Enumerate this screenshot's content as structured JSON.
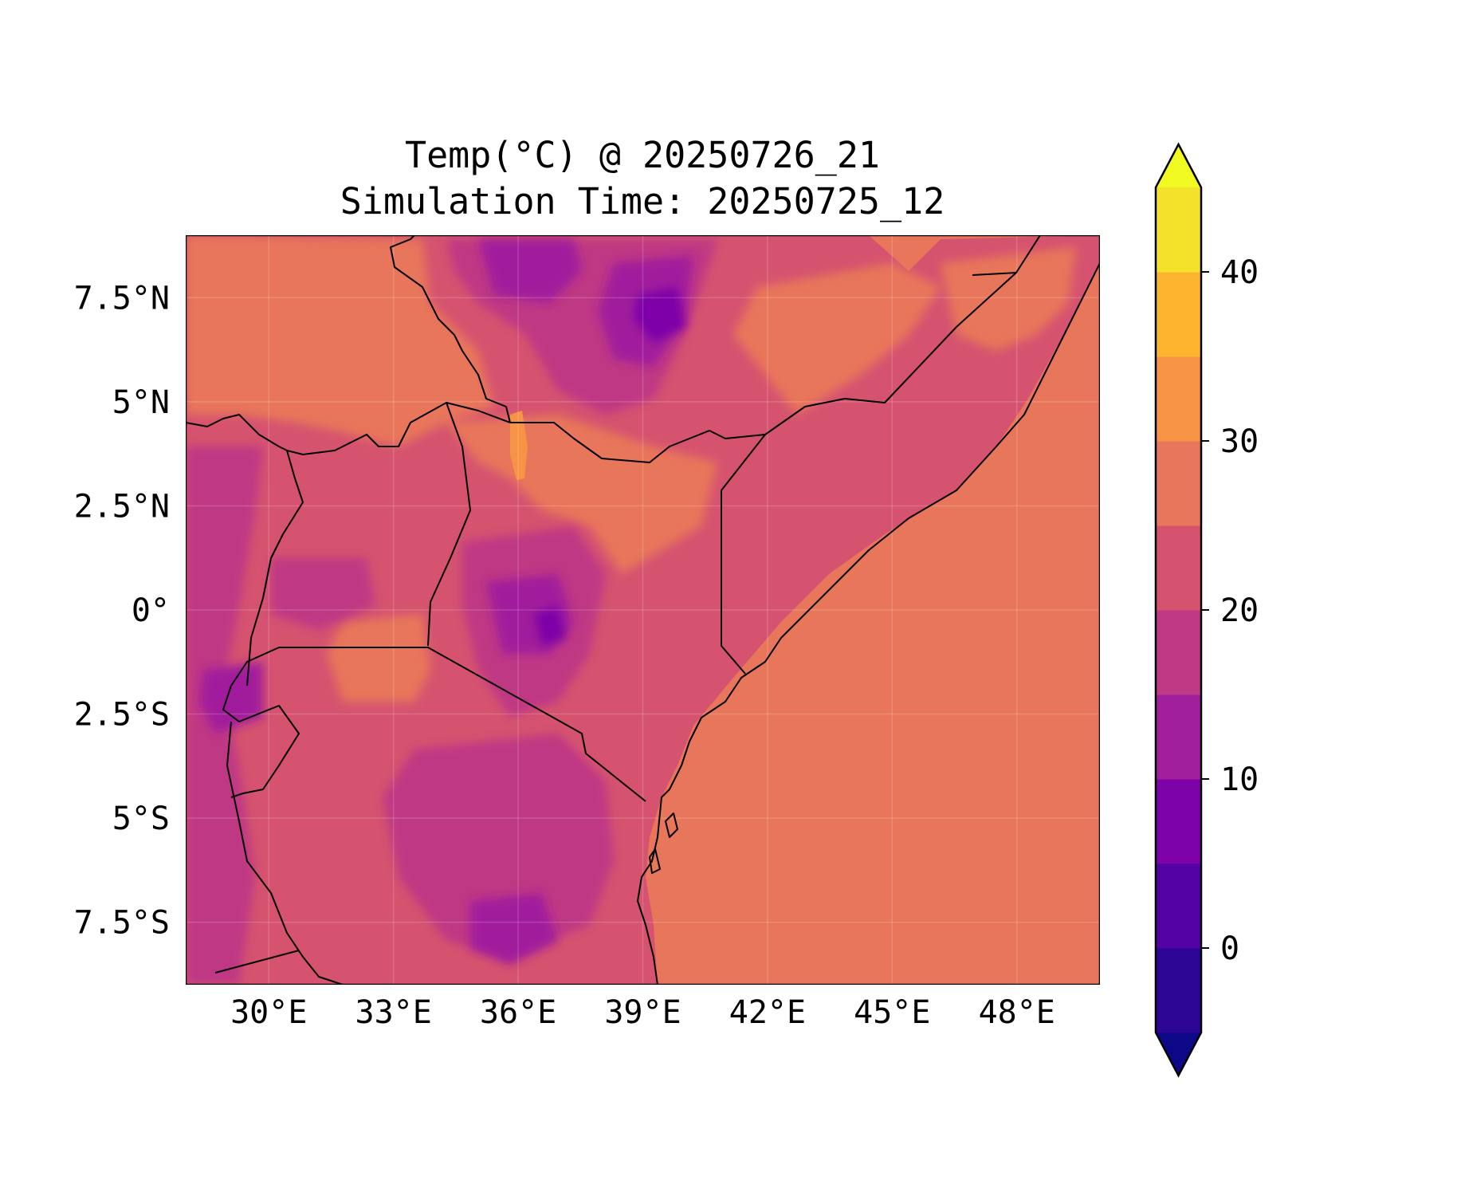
{
  "title": {
    "line1": "Temp(°C) @ 20250726_21",
    "line2": "Simulation Time: 20250725_12"
  },
  "map": {
    "lon_range": [
      28,
      50
    ],
    "lat_range": [
      -9,
      9
    ],
    "x_ticks": [
      {
        "value": 30,
        "label": "30°E"
      },
      {
        "value": 33,
        "label": "33°E"
      },
      {
        "value": 36,
        "label": "36°E"
      },
      {
        "value": 39,
        "label": "39°E"
      },
      {
        "value": 42,
        "label": "42°E"
      },
      {
        "value": 45,
        "label": "45°E"
      },
      {
        "value": 48,
        "label": "48°E"
      }
    ],
    "y_ticks": [
      {
        "value": 7.5,
        "label": "7.5°N"
      },
      {
        "value": 5,
        "label": "5°N"
      },
      {
        "value": 2.5,
        "label": "2.5°N"
      },
      {
        "value": 0,
        "label": "0°"
      },
      {
        "value": -2.5,
        "label": "2.5°S"
      },
      {
        "value": -5,
        "label": "5°S"
      },
      {
        "value": -7.5,
        "label": "7.5°S"
      }
    ],
    "gridlines": true,
    "ocean_fill": "#e8765a"
  },
  "colorbar": {
    "range": [
      -5,
      45
    ],
    "extend": "both",
    "levels": [
      {
        "from": -5,
        "to": 0,
        "color": "#2c0594"
      },
      {
        "from": 0,
        "to": 5,
        "color": "#5502a4"
      },
      {
        "from": 5,
        "to": 10,
        "color": "#7d03a8"
      },
      {
        "from": 10,
        "to": 15,
        "color": "#a11f9c"
      },
      {
        "from": 15,
        "to": 20,
        "color": "#bf3984"
      },
      {
        "from": 20,
        "to": 25,
        "color": "#d5536f"
      },
      {
        "from": 25,
        "to": 30,
        "color": "#e8765a"
      },
      {
        "from": 30,
        "to": 35,
        "color": "#f79344"
      },
      {
        "from": 35,
        "to": 40,
        "color": "#fdb42f"
      },
      {
        "from": 40,
        "to": 45,
        "color": "#f4e12a"
      }
    ],
    "under_color": "#0d0887",
    "over_color": "#f0f921",
    "ticks": [
      {
        "value": 0,
        "label": "0"
      },
      {
        "value": 10,
        "label": "10"
      },
      {
        "value": 20,
        "label": "20"
      },
      {
        "value": 30,
        "label": "30"
      },
      {
        "value": 40,
        "label": "40"
      }
    ]
  }
}
